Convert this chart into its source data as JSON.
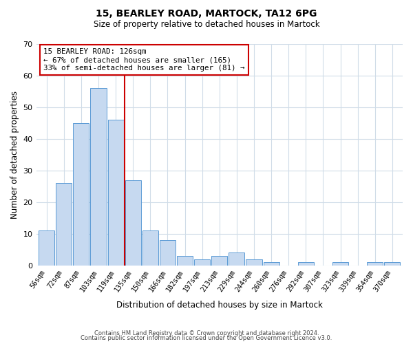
{
  "title": "15, BEARLEY ROAD, MARTOCK, TA12 6PG",
  "subtitle": "Size of property relative to detached houses in Martock",
  "xlabel": "Distribution of detached houses by size in Martock",
  "ylabel": "Number of detached properties",
  "bar_labels": [
    "56sqm",
    "72sqm",
    "87sqm",
    "103sqm",
    "119sqm",
    "135sqm",
    "150sqm",
    "166sqm",
    "182sqm",
    "197sqm",
    "213sqm",
    "229sqm",
    "244sqm",
    "260sqm",
    "276sqm",
    "292sqm",
    "307sqm",
    "323sqm",
    "339sqm",
    "354sqm",
    "370sqm"
  ],
  "bar_values": [
    11,
    26,
    45,
    56,
    46,
    27,
    11,
    8,
    3,
    2,
    3,
    4,
    2,
    1,
    0,
    1,
    0,
    1,
    0,
    1,
    1
  ],
  "bar_color": "#c6d9f0",
  "bar_edge_color": "#5b9bd5",
  "vline_x": 4.5,
  "vline_color": "#cc0000",
  "annotation_text": "15 BEARLEY ROAD: 126sqm\n← 67% of detached houses are smaller (165)\n33% of semi-detached houses are larger (81) →",
  "annotation_box_color": "#ffffff",
  "annotation_box_edge": "#cc0000",
  "ylim": [
    0,
    70
  ],
  "yticks": [
    0,
    10,
    20,
    30,
    40,
    50,
    60,
    70
  ],
  "footer1": "Contains HM Land Registry data © Crown copyright and database right 2024.",
  "footer2": "Contains public sector information licensed under the Open Government Licence v3.0.",
  "bg_color": "#ffffff",
  "grid_color": "#d0dce8"
}
